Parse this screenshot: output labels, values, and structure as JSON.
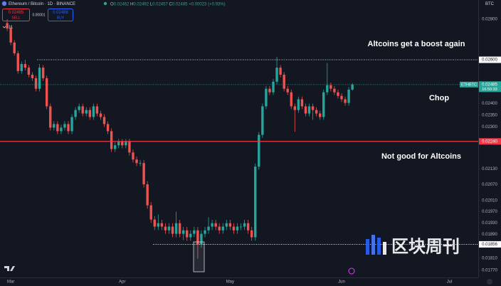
{
  "toolbar": {
    "symbol": "Ethereum / Bitcoin · 1D · BINANCE",
    "ohlc": [
      {
        "key": "O",
        "value": "0.02462"
      },
      {
        "key": "H",
        "value": "0.02492"
      },
      {
        "key": "L",
        "value": "0.02457"
      },
      {
        "key": "C",
        "value": "0.02485"
      }
    ],
    "change": "+0.00023 (+0.93%)",
    "sell": {
      "price": "0.02485",
      "label": "SELL"
    },
    "spread": "0.00001",
    "buy": {
      "price": "0.02486",
      "label": "BUY"
    },
    "indicators": "11",
    "currency": "BTC",
    "watermark": "区块周刊"
  },
  "chart_data": {
    "type": "candlestick",
    "log_scale": true,
    "grid": false,
    "up_color": "#26a69a",
    "down_color": "#ef5350",
    "x": [
      0,
      1,
      2,
      3,
      4,
      5,
      6,
      7,
      8,
      9,
      10,
      11,
      12,
      13,
      14,
      15,
      16,
      17,
      18,
      19,
      20,
      21,
      22,
      23,
      24,
      25,
      26,
      27,
      28,
      29,
      30,
      31,
      32,
      33,
      34,
      35,
      36,
      37,
      38,
      39,
      40,
      41,
      42,
      43,
      44,
      45,
      46,
      47,
      48,
      49,
      50,
      51,
      52,
      53,
      54,
      55,
      56,
      57,
      58,
      59,
      60,
      61,
      62,
      63,
      64,
      65,
      66,
      67,
      68,
      69,
      70,
      71,
      72,
      73,
      74,
      75,
      76,
      77,
      78,
      79,
      80,
      81,
      82,
      83,
      84,
      85,
      86,
      87,
      88,
      89,
      90,
      91,
      92,
      93,
      94,
      95,
      96
    ],
    "open": [
      0.0278,
      0.02753,
      0.02683,
      0.02631,
      0.02547,
      0.0258,
      0.02563,
      0.0253,
      0.02514,
      0.02466,
      0.02563,
      0.02514,
      0.02388,
      0.02297,
      0.02312,
      0.02282,
      0.02297,
      0.02312,
      0.02282,
      0.02342,
      0.02372,
      0.02388,
      0.02357,
      0.02372,
      0.02342,
      0.02388,
      0.02357,
      0.02342,
      0.02312,
      0.02282,
      0.02209,
      0.02224,
      0.02238,
      0.02224,
      0.02238,
      0.02195,
      0.02167,
      0.02153,
      0.02153,
      0.02071,
      0.01993,
      0.01942,
      0.01917,
      0.01929,
      0.01917,
      0.01904,
      0.01917,
      0.01892,
      0.01929,
      0.01892,
      0.01904,
      0.0188,
      0.01892,
      0.01904,
      0.01856,
      0.01892,
      0.01904,
      0.01917,
      0.01929,
      0.01917,
      0.01904,
      0.01917,
      0.01929,
      0.01917,
      0.01904,
      0.01917,
      0.01917,
      0.01929,
      0.01904,
      0.0188,
      0.02139,
      0.02267,
      0.02388,
      0.02466,
      0.0245,
      0.02498,
      0.02563,
      0.0253,
      0.02466,
      0.0245,
      0.02388,
      0.02372,
      0.02419,
      0.02388,
      0.02357,
      0.02388,
      0.02372,
      0.02357,
      0.02342,
      0.0245,
      0.02482,
      0.02466,
      0.0245,
      0.02434,
      0.02419,
      0.02403,
      0.02462
    ],
    "high": [
      0.028,
      0.02765,
      0.02695,
      0.02643,
      0.02592,
      0.026,
      0.02575,
      0.02542,
      0.02526,
      0.0258,
      0.02575,
      0.02526,
      0.024,
      0.02324,
      0.02324,
      0.02309,
      0.02324,
      0.02324,
      0.02354,
      0.02384,
      0.024,
      0.024,
      0.02384,
      0.02384,
      0.024,
      0.024,
      0.02369,
      0.02354,
      0.02324,
      0.02294,
      0.02236,
      0.0225,
      0.0225,
      0.0225,
      0.0225,
      0.02207,
      0.02179,
      0.02165,
      0.02165,
      0.02083,
      0.02005,
      0.01954,
      0.0196,
      0.01941,
      0.01929,
      0.01929,
      0.01929,
      0.0197,
      0.01941,
      0.01916,
      0.01916,
      0.01904,
      0.01916,
      0.01916,
      0.01904,
      0.01916,
      0.0195,
      0.01941,
      0.01941,
      0.01929,
      0.01929,
      0.01941,
      0.01941,
      0.01929,
      0.01929,
      0.01929,
      0.01941,
      0.01941,
      0.01916,
      0.02151,
      0.02279,
      0.024,
      0.02478,
      0.02478,
      0.0251,
      0.02614,
      0.02575,
      0.02542,
      0.02478,
      0.02462,
      0.024,
      0.02431,
      0.02431,
      0.024,
      0.024,
      0.024,
      0.02384,
      0.02369,
      0.02462,
      0.02585,
      0.02494,
      0.02478,
      0.02462,
      0.02446,
      0.02431,
      0.02474,
      0.02492
    ],
    "low": [
      0.0274,
      0.0267,
      0.0262,
      0.02535,
      0.02535,
      0.0255,
      0.02518,
      0.02502,
      0.02454,
      0.02454,
      0.02502,
      0.02376,
      0.02285,
      0.02285,
      0.0227,
      0.0227,
      0.02285,
      0.0227,
      0.0227,
      0.0233,
      0.0236,
      0.02345,
      0.02345,
      0.0233,
      0.0233,
      0.02345,
      0.0233,
      0.023,
      0.0227,
      0.02197,
      0.02197,
      0.02212,
      0.02212,
      0.02212,
      0.02183,
      0.02155,
      0.02141,
      0.02141,
      0.02059,
      0.01981,
      0.0193,
      0.01905,
      0.01905,
      0.01905,
      0.01892,
      0.01892,
      0.0188,
      0.0188,
      0.0188,
      0.0187,
      0.01868,
      0.01868,
      0.0188,
      0.01808,
      0.01844,
      0.0188,
      0.01892,
      0.01905,
      0.01905,
      0.01892,
      0.01892,
      0.01905,
      0.01905,
      0.01892,
      0.01892,
      0.01905,
      0.01905,
      0.01892,
      0.01868,
      0.01868,
      0.02127,
      0.02255,
      0.02376,
      0.02438,
      0.02438,
      0.02486,
      0.02518,
      0.02454,
      0.02438,
      0.02376,
      0.0228,
      0.0236,
      0.02376,
      0.02345,
      0.02345,
      0.0233,
      0.02345,
      0.0233,
      0.0233,
      0.02438,
      0.02454,
      0.02438,
      0.02422,
      0.02407,
      0.02391,
      0.02391,
      0.02457
    ],
    "close": [
      0.02753,
      0.02683,
      0.02631,
      0.02547,
      0.0258,
      0.02563,
      0.0253,
      0.02514,
      0.02466,
      0.02563,
      0.02514,
      0.02388,
      0.02297,
      0.02312,
      0.02282,
      0.02297,
      0.02312,
      0.02282,
      0.02342,
      0.02372,
      0.02388,
      0.02357,
      0.02372,
      0.02342,
      0.02388,
      0.02357,
      0.02342,
      0.02312,
      0.02282,
      0.02209,
      0.02224,
      0.02238,
      0.02224,
      0.02238,
      0.02195,
      0.02167,
      0.02153,
      0.02153,
      0.02071,
      0.01993,
      0.01942,
      0.01917,
      0.01929,
      0.01917,
      0.01904,
      0.01917,
      0.01892,
      0.01929,
      0.01892,
      0.01904,
      0.0188,
      0.01892,
      0.01904,
      0.01856,
      0.01892,
      0.01904,
      0.01917,
      0.01929,
      0.01917,
      0.01904,
      0.01917,
      0.01929,
      0.01917,
      0.01904,
      0.01917,
      0.01917,
      0.01929,
      0.01904,
      0.0188,
      0.02139,
      0.02267,
      0.02388,
      0.02466,
      0.0245,
      0.02498,
      0.02563,
      0.0253,
      0.02466,
      0.0245,
      0.02388,
      0.02372,
      0.02419,
      0.02388,
      0.02357,
      0.02388,
      0.02372,
      0.02357,
      0.02342,
      0.0245,
      0.02482,
      0.02466,
      0.0245,
      0.02434,
      0.02419,
      0.02403,
      0.02462,
      0.02485
    ],
    "xlim": [
      -2,
      131
    ],
    "xticks": [
      {
        "value": 1,
        "label": "Mar"
      },
      {
        "value": 32,
        "label": "Apr"
      },
      {
        "value": 62,
        "label": "May"
      },
      {
        "value": 93,
        "label": "Jun"
      },
      {
        "value": 123,
        "label": "Jul"
      }
    ],
    "ylim": [
      0.01747,
      0.029
    ],
    "yticks": [
      {
        "value": 0.028,
        "label": "0.02800"
      },
      {
        "value": 0.024,
        "label": "0.02400"
      },
      {
        "value": 0.0235,
        "label": "0.02350"
      },
      {
        "value": 0.023,
        "label": "0.02300"
      },
      {
        "value": 0.0213,
        "label": "0.02130"
      },
      {
        "value": 0.0207,
        "label": "0.02070"
      },
      {
        "value": 0.0201,
        "label": "0.02010"
      },
      {
        "value": 0.0197,
        "label": "0.01970"
      },
      {
        "value": 0.0193,
        "label": "0.01930"
      },
      {
        "value": 0.0189,
        "label": "0.01890"
      },
      {
        "value": 0.0181,
        "label": "0.01810"
      },
      {
        "value": 0.0177,
        "label": "0.01770"
      }
    ],
    "hlines": [
      {
        "value": 0.026,
        "label": "0.02600",
        "color": "#ffffff",
        "style": "dotted"
      },
      {
        "value": 0.0224,
        "label": "0.02240",
        "color": "#f23645",
        "style": "solid"
      },
      {
        "value": 0.01856,
        "label": "0.01856",
        "color": "#ffffff",
        "style": "dotted"
      }
    ],
    "last_price": {
      "value": 0.02485,
      "label": "0.02485",
      "symbol": "ETHBTC",
      "countdown": "16:50:33",
      "color": "#26a69a"
    },
    "annotations": [
      "Altcoins get a boost again",
      "Chop",
      "Not good for Altcoins"
    ]
  }
}
